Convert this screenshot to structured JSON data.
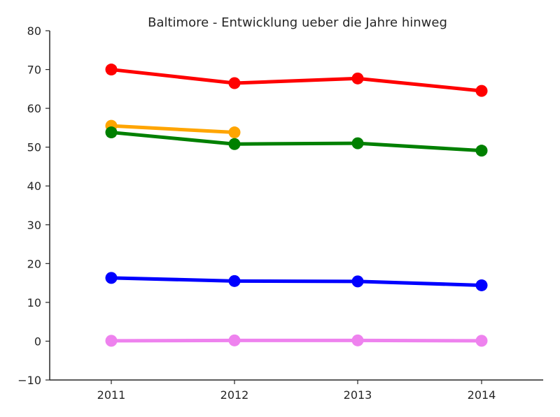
{
  "chart_data": {
    "type": "line",
    "title": "Baltimore - Entwicklung ueber die Jahre hinweg",
    "xlabel": "",
    "ylabel": "",
    "categories": [
      "2011",
      "2012",
      "2013",
      "2014"
    ],
    "ylim": [
      -10,
      80
    ],
    "y_ticks": [
      "80",
      "70",
      "60",
      "50",
      "40",
      "30",
      "20",
      "10",
      "0",
      "−10"
    ],
    "grid": false,
    "series": [
      {
        "color": "#ff0000",
        "values": [
          70.0,
          66.5,
          67.7,
          64.5
        ]
      },
      {
        "color": "#ffa500",
        "values": [
          55.5,
          53.8,
          null,
          null
        ]
      },
      {
        "color": "#008000",
        "values": [
          53.8,
          50.8,
          51.0,
          49.1
        ]
      },
      {
        "color": "#0000ff",
        "values": [
          16.3,
          15.5,
          15.4,
          14.4
        ]
      },
      {
        "color": "#ee82ee",
        "values": [
          0.1,
          0.2,
          0.2,
          0.1
        ]
      }
    ]
  }
}
